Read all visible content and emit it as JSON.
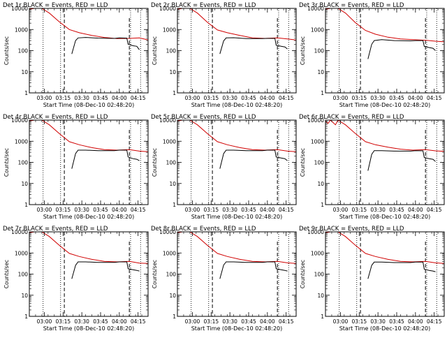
{
  "chart_data": {
    "type": "line",
    "layout": "3x3 grid",
    "ylabel": "Counts/sec",
    "xlabel": "Start Time (08-Dec-10 02:48:20)",
    "y_scale": "log",
    "ylim": [
      1,
      10000
    ],
    "y_ticks": [
      {
        "v": 1,
        "label": "1"
      },
      {
        "v": 10,
        "label": "10"
      },
      {
        "v": 100,
        "label": "100"
      },
      {
        "v": 1000,
        "label": "1000"
      },
      {
        "v": 10000,
        "label": "10000"
      }
    ],
    "xlim_minutes_after_0248": [
      0,
      95
    ],
    "x_ticks": [
      "03:00",
      "03:15",
      "03:30",
      "03:45",
      "04:00",
      "04:15"
    ],
    "series_colors": {
      "events": "#000000",
      "lld": "#d00000"
    },
    "vertical_markers": {
      "dotted": [
        "02:59",
        "03:13",
        "04:09",
        "04:17"
      ],
      "dashed": [
        "03:16",
        "04:08"
      ]
    },
    "panels": [
      {
        "title": "Det 1r BLACK = Events, RED = LLD",
        "lld": [
          [
            0,
            9000
          ],
          [
            4,
            10000
          ],
          [
            10,
            10000
          ],
          [
            16,
            6000
          ],
          [
            24,
            2300
          ],
          [
            32,
            1000
          ],
          [
            40,
            700
          ],
          [
            50,
            520
          ],
          [
            60,
            420
          ],
          [
            70,
            370
          ],
          [
            80,
            380
          ],
          [
            88,
            400
          ],
          [
            95,
            320
          ]
        ],
        "events": [
          [
            34,
            70
          ],
          [
            37,
            300
          ],
          [
            39,
            400
          ],
          [
            45,
            420
          ],
          [
            55,
            390
          ],
          [
            68,
            380
          ],
          [
            72,
            400
          ],
          [
            78,
            390
          ],
          [
            79,
            200
          ],
          [
            83,
            170
          ],
          [
            86,
            160
          ],
          [
            88,
            110
          ]
        ]
      },
      {
        "title": "Det 2r BLACK = Events, RED = LLD",
        "lld": [
          [
            0,
            9000
          ],
          [
            4,
            10000
          ],
          [
            10,
            10000
          ],
          [
            16,
            6000
          ],
          [
            24,
            2200
          ],
          [
            32,
            950
          ],
          [
            40,
            700
          ],
          [
            50,
            520
          ],
          [
            60,
            400
          ],
          [
            70,
            380
          ],
          [
            80,
            400
          ],
          [
            88,
            360
          ],
          [
            95,
            320
          ]
        ],
        "events": [
          [
            34,
            70
          ],
          [
            37,
            290
          ],
          [
            39,
            400
          ],
          [
            45,
            410
          ],
          [
            55,
            370
          ],
          [
            68,
            370
          ],
          [
            72,
            380
          ],
          [
            78,
            380
          ],
          [
            79,
            180
          ],
          [
            83,
            160
          ],
          [
            86,
            150
          ],
          [
            88,
            120
          ]
        ]
      },
      {
        "title": "Det 3r BLACK = Events, RED = LLD",
        "lld": [
          [
            0,
            9000
          ],
          [
            4,
            10000
          ],
          [
            10,
            10000
          ],
          [
            16,
            6000
          ],
          [
            24,
            2100
          ],
          [
            32,
            900
          ],
          [
            40,
            600
          ],
          [
            50,
            430
          ],
          [
            60,
            360
          ],
          [
            70,
            330
          ],
          [
            80,
            310
          ],
          [
            88,
            280
          ],
          [
            95,
            260
          ]
        ],
        "events": [
          [
            34,
            40
          ],
          [
            37,
            200
          ],
          [
            39,
            300
          ],
          [
            45,
            330
          ],
          [
            55,
            300
          ],
          [
            68,
            290
          ],
          [
            72,
            300
          ],
          [
            78,
            300
          ],
          [
            79,
            160
          ],
          [
            83,
            140
          ],
          [
            86,
            130
          ],
          [
            88,
            100
          ]
        ]
      },
      {
        "title": "Det 4r BLACK = Events, RED = LLD",
        "lld": [
          [
            0,
            9000
          ],
          [
            4,
            10000
          ],
          [
            10,
            10000
          ],
          [
            16,
            6000
          ],
          [
            24,
            2300
          ],
          [
            32,
            950
          ],
          [
            40,
            680
          ],
          [
            50,
            500
          ],
          [
            60,
            400
          ],
          [
            70,
            380
          ],
          [
            80,
            400
          ],
          [
            88,
            340
          ],
          [
            95,
            320
          ]
        ],
        "events": [
          [
            34,
            50
          ],
          [
            37,
            260
          ],
          [
            39,
            380
          ],
          [
            45,
            380
          ],
          [
            55,
            360
          ],
          [
            68,
            360
          ],
          [
            72,
            380
          ],
          [
            78,
            380
          ],
          [
            79,
            180
          ],
          [
            83,
            150
          ],
          [
            86,
            140
          ],
          [
            88,
            120
          ]
        ]
      },
      {
        "title": "Det 5r BLACK = Events, RED = LLD",
        "lld": [
          [
            0,
            9000
          ],
          [
            4,
            10000
          ],
          [
            10,
            10000
          ],
          [
            16,
            6000
          ],
          [
            24,
            2300
          ],
          [
            32,
            950
          ],
          [
            40,
            680
          ],
          [
            50,
            500
          ],
          [
            60,
            400
          ],
          [
            70,
            380
          ],
          [
            80,
            400
          ],
          [
            88,
            340
          ],
          [
            95,
            320
          ]
        ],
        "events": [
          [
            34,
            50
          ],
          [
            37,
            260
          ],
          [
            39,
            380
          ],
          [
            45,
            380
          ],
          [
            55,
            360
          ],
          [
            68,
            360
          ],
          [
            72,
            380
          ],
          [
            78,
            380
          ],
          [
            79,
            180
          ],
          [
            83,
            160
          ],
          [
            86,
            150
          ],
          [
            88,
            120
          ]
        ]
      },
      {
        "title": "Det 6r BLACK = Events, RED = LLD",
        "lld": [
          [
            0,
            9000
          ],
          [
            2,
            7000
          ],
          [
            4,
            10000
          ],
          [
            8,
            6000
          ],
          [
            10,
            10000
          ],
          [
            16,
            6000
          ],
          [
            24,
            2300
          ],
          [
            32,
            950
          ],
          [
            40,
            680
          ],
          [
            50,
            520
          ],
          [
            60,
            420
          ],
          [
            70,
            380
          ],
          [
            80,
            400
          ],
          [
            88,
            350
          ],
          [
            95,
            330
          ]
        ],
        "events": [
          [
            34,
            40
          ],
          [
            37,
            240
          ],
          [
            39,
            360
          ],
          [
            45,
            360
          ],
          [
            55,
            340
          ],
          [
            68,
            340
          ],
          [
            72,
            360
          ],
          [
            78,
            350
          ],
          [
            79,
            170
          ],
          [
            83,
            150
          ],
          [
            86,
            140
          ],
          [
            88,
            110
          ]
        ]
      },
      {
        "title": "Det 7r BLACK = Events, RED = LLD",
        "lld": [
          [
            0,
            9000
          ],
          [
            4,
            10000
          ],
          [
            10,
            10000
          ],
          [
            16,
            6000
          ],
          [
            24,
            2300
          ],
          [
            32,
            950
          ],
          [
            40,
            680
          ],
          [
            50,
            500
          ],
          [
            60,
            400
          ],
          [
            70,
            380
          ],
          [
            80,
            400
          ],
          [
            88,
            330
          ],
          [
            95,
            320
          ]
        ],
        "events": [
          [
            34,
            60
          ],
          [
            37,
            260
          ],
          [
            39,
            380
          ],
          [
            45,
            380
          ],
          [
            55,
            360
          ],
          [
            68,
            360
          ],
          [
            72,
            380
          ],
          [
            78,
            380
          ],
          [
            79,
            180
          ],
          [
            83,
            160
          ],
          [
            86,
            150
          ],
          [
            88,
            140
          ]
        ]
      },
      {
        "title": "Det 8r BLACK = Events, RED = LLD",
        "lld": [
          [
            0,
            9000
          ],
          [
            4,
            10000
          ],
          [
            10,
            10000
          ],
          [
            16,
            6000
          ],
          [
            24,
            2300
          ],
          [
            32,
            950
          ],
          [
            40,
            680
          ],
          [
            50,
            500
          ],
          [
            60,
            400
          ],
          [
            70,
            380
          ],
          [
            80,
            400
          ],
          [
            88,
            340
          ],
          [
            95,
            320
          ]
        ],
        "events": [
          [
            34,
            60
          ],
          [
            37,
            270
          ],
          [
            39,
            380
          ],
          [
            45,
            380
          ],
          [
            55,
            360
          ],
          [
            68,
            360
          ],
          [
            72,
            380
          ],
          [
            78,
            380
          ],
          [
            79,
            180
          ],
          [
            83,
            160
          ],
          [
            86,
            150
          ],
          [
            88,
            140
          ]
        ]
      },
      {
        "title": "Det 9r BLACK = Events, RED = LLD",
        "lld": [
          [
            0,
            9000
          ],
          [
            4,
            10000
          ],
          [
            10,
            10000
          ],
          [
            16,
            6000
          ],
          [
            24,
            2300
          ],
          [
            32,
            950
          ],
          [
            40,
            680
          ],
          [
            50,
            500
          ],
          [
            60,
            400
          ],
          [
            70,
            380
          ],
          [
            80,
            400
          ],
          [
            88,
            340
          ],
          [
            95,
            320
          ]
        ],
        "events": [
          [
            34,
            60
          ],
          [
            37,
            260
          ],
          [
            39,
            370
          ],
          [
            45,
            370
          ],
          [
            55,
            350
          ],
          [
            68,
            350
          ],
          [
            72,
            370
          ],
          [
            78,
            370
          ],
          [
            79,
            170
          ],
          [
            83,
            150
          ],
          [
            86,
            140
          ],
          [
            88,
            130
          ]
        ]
      }
    ]
  }
}
